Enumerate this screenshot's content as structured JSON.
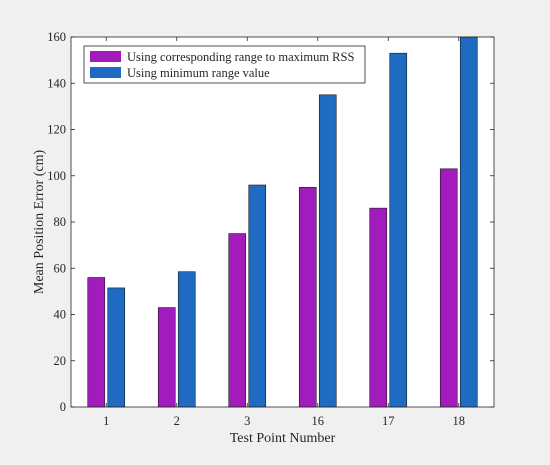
{
  "chart_data": {
    "type": "bar",
    "title": "",
    "xlabel": "Test Point Number",
    "ylabel": "Mean Position Error (cm)",
    "categories": [
      "1",
      "2",
      "3",
      "16",
      "17",
      "18"
    ],
    "ylim": [
      0,
      160
    ],
    "yticks": [
      0,
      20,
      40,
      60,
      80,
      100,
      120,
      140,
      160
    ],
    "grid": false,
    "legend_position": "top-left",
    "series": [
      {
        "name": "Using corresponding range to maximum RSS",
        "color": "#a21cbd",
        "values": [
          56,
          43,
          75,
          95,
          86,
          103
        ]
      },
      {
        "name": "Using minimum range value",
        "color": "#1f6bc1",
        "values": [
          51.5,
          58.5,
          96,
          135,
          153,
          160
        ]
      }
    ]
  }
}
